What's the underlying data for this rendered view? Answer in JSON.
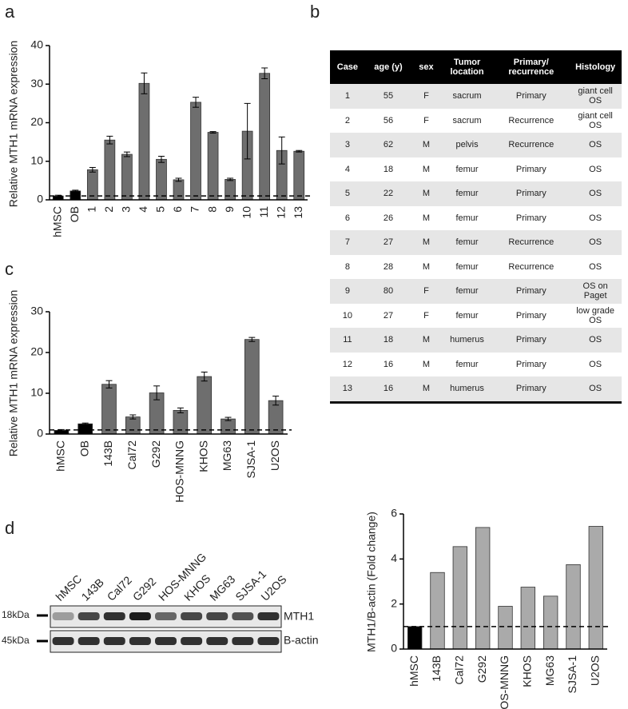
{
  "panel_labels": [
    "a",
    "b",
    "c",
    "d"
  ],
  "chart_data": [
    {
      "type": "bar",
      "ylabel": "Relative MTH1 mRNA expression",
      "categories": [
        "hMSC",
        "OB",
        "1",
        "2",
        "3",
        "4",
        "5",
        "6",
        "7",
        "8",
        "9",
        "10",
        "11",
        "12",
        "13"
      ],
      "values": [
        1,
        2.3,
        7.8,
        15.5,
        11.8,
        30.2,
        10.5,
        5.2,
        25.3,
        17.5,
        5.3,
        17.8,
        32.8,
        12.8,
        12.6
      ],
      "errors": [
        0.2,
        0.2,
        0.6,
        1,
        0.6,
        2.7,
        0.8,
        0.4,
        1.3,
        0.2,
        0.3,
        7.2,
        1.4,
        3.5,
        0.2
      ],
      "colors": [
        "#000000",
        "#000000",
        "#6e6e6e",
        "#6e6e6e",
        "#6e6e6e",
        "#6e6e6e",
        "#6e6e6e",
        "#6e6e6e",
        "#6e6e6e",
        "#6e6e6e",
        "#6e6e6e",
        "#6e6e6e",
        "#6e6e6e",
        "#6e6e6e",
        "#6e6e6e"
      ],
      "reference_line": 1,
      "ylim": [
        0,
        40
      ],
      "yticks": [
        0,
        10,
        20,
        30,
        40
      ]
    },
    {
      "type": "bar",
      "ylabel": "Relative MTH1 mRNA expression",
      "categories": [
        "hMSC",
        "OB",
        "143B",
        "Cal72",
        "G292",
        "HOS-MNNG",
        "KHOS",
        "MG63",
        "SJSA-1",
        "U2OS"
      ],
      "values": [
        0.9,
        2.5,
        12.2,
        4.2,
        10.1,
        5.8,
        14.1,
        3.7,
        23.2,
        8.2
      ],
      "errors": [
        0.2,
        0.2,
        0.9,
        0.5,
        1.7,
        0.6,
        1.1,
        0.4,
        0.5,
        1.1
      ],
      "colors": [
        "#000000",
        "#000000",
        "#6e6e6e",
        "#6e6e6e",
        "#6e6e6e",
        "#6e6e6e",
        "#6e6e6e",
        "#6e6e6e",
        "#6e6e6e",
        "#6e6e6e"
      ],
      "reference_line": 1,
      "ylim": [
        0,
        30
      ],
      "yticks": [
        0,
        10,
        20,
        30
      ]
    },
    {
      "type": "bar",
      "ylabel": "MTH1/B-actin (Fold change)",
      "categories": [
        "hMSC",
        "143B",
        "Cal72",
        "G292",
        "HOS-MNNG",
        "KHOS",
        "MG63",
        "SJSA-1",
        "U2OS"
      ],
      "values": [
        1,
        3.4,
        4.55,
        5.4,
        1.9,
        2.75,
        2.35,
        3.75,
        5.45
      ],
      "colors": [
        "#000000",
        "#aaaaaa",
        "#aaaaaa",
        "#aaaaaa",
        "#aaaaaa",
        "#aaaaaa",
        "#aaaaaa",
        "#aaaaaa",
        "#aaaaaa"
      ],
      "reference_line": 1,
      "ylim": [
        0,
        6
      ],
      "yticks": [
        0,
        2,
        4,
        6
      ]
    }
  ],
  "table": {
    "header": [
      "Case",
      "age (y)",
      "sex",
      "Tumor location",
      "Primary/ recurrence",
      "Histology"
    ],
    "rows": [
      [
        1,
        55,
        "F",
        "sacrum",
        "Primary",
        "giant cell OS"
      ],
      [
        2,
        56,
        "F",
        "sacrum",
        "Recurrence",
        "giant cell OS"
      ],
      [
        3,
        62,
        "M",
        "pelvis",
        "Recurrence",
        "OS"
      ],
      [
        4,
        18,
        "M",
        "femur",
        "Primary",
        "OS"
      ],
      [
        5,
        22,
        "M",
        "femur",
        "Primary",
        "OS"
      ],
      [
        6,
        26,
        "M",
        "femur",
        "Primary",
        "OS"
      ],
      [
        7,
        27,
        "M",
        "femur",
        "Recurrence",
        "OS"
      ],
      [
        8,
        28,
        "M",
        "femur",
        "Recurrence",
        "OS"
      ],
      [
        9,
        80,
        "F",
        "femur",
        "Primary",
        "OS on Paget"
      ],
      [
        10,
        27,
        "F",
        "femur",
        "Primary",
        "low grade OS"
      ],
      [
        11,
        18,
        "M",
        "humerus",
        "Primary",
        "OS"
      ],
      [
        12,
        16,
        "M",
        "femur",
        "Primary",
        "OS"
      ],
      [
        13,
        16,
        "M",
        "humerus",
        "Primary",
        "OS"
      ]
    ]
  },
  "blot": {
    "lanes": [
      "hMSC",
      "143B",
      "Cal72",
      "G292",
      "HOS-MNNG",
      "KHOS",
      "MG63",
      "SJSA-1",
      "U2OS"
    ],
    "markers": [
      "18kDa",
      "45kDa"
    ],
    "bands": [
      "MTH1",
      "B-actin"
    ]
  }
}
